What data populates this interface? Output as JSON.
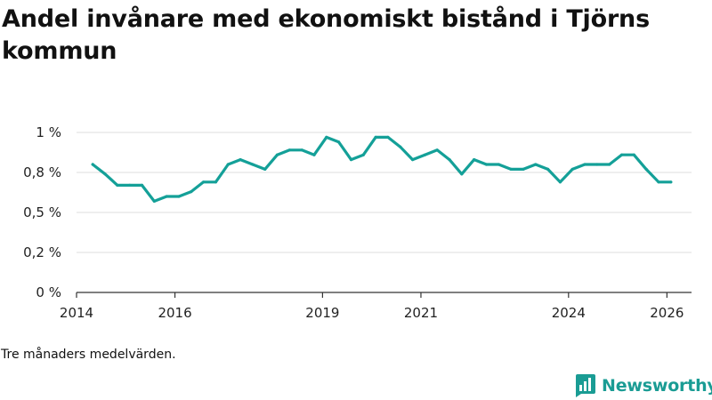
{
  "header": {
    "title": "Andel invånare med ekonomiskt bistånd i Tjörns kommun"
  },
  "footer": {
    "note": "Tre månaders medelvärden.",
    "brand": "Newsworthy"
  },
  "colors": {
    "line": "#14a098",
    "grid": "#dddddd",
    "axis": "#333333",
    "brand": "#1a9c94"
  },
  "chart_data": {
    "type": "line",
    "title": "Andel invånare med ekonomiskt bistånd i Tjörns kommun",
    "xlabel": "",
    "ylabel": "",
    "xlim": [
      2014.0,
      2026.5
    ],
    "ylim": [
      0,
      1.0
    ],
    "y_ticks": [
      {
        "value": 0,
        "label": "0 %"
      },
      {
        "value": 0.25,
        "label": "0,2 %"
      },
      {
        "value": 0.5,
        "label": "0,5 %"
      },
      {
        "value": 0.75,
        "label": "0,8 %"
      },
      {
        "value": 1.0,
        "label": "1 %"
      }
    ],
    "x_ticks": [
      {
        "value": 2014,
        "label": "2014"
      },
      {
        "value": 2016,
        "label": "2016"
      },
      {
        "value": 2019,
        "label": "2019"
      },
      {
        "value": 2021,
        "label": "2021"
      },
      {
        "value": 2024,
        "label": "2024"
      },
      {
        "value": 2026,
        "label": "2026"
      }
    ],
    "series": [
      {
        "name": "Andel invånare med ekonomiskt bistånd",
        "x": [
          2014.33,
          2014.58,
          2014.83,
          2015.08,
          2015.33,
          2015.58,
          2015.83,
          2016.08,
          2016.33,
          2016.58,
          2016.83,
          2017.08,
          2017.33,
          2017.58,
          2017.83,
          2018.08,
          2018.33,
          2018.58,
          2018.83,
          2019.08,
          2019.33,
          2019.58,
          2019.83,
          2020.08,
          2020.33,
          2020.58,
          2020.83,
          2021.08,
          2021.33,
          2021.58,
          2021.83,
          2022.08,
          2022.33,
          2022.58,
          2022.83,
          2023.08,
          2023.33,
          2023.58,
          2023.83,
          2024.08,
          2024.33,
          2024.58,
          2024.83,
          2025.08,
          2025.33,
          2025.58,
          2025.83,
          2026.08
        ],
        "y": [
          0.8,
          0.74,
          0.67,
          0.67,
          0.67,
          0.57,
          0.6,
          0.6,
          0.63,
          0.69,
          0.69,
          0.8,
          0.83,
          0.8,
          0.77,
          0.86,
          0.89,
          0.89,
          0.86,
          0.97,
          0.94,
          0.83,
          0.86,
          0.97,
          0.97,
          0.91,
          0.83,
          0.86,
          0.89,
          0.83,
          0.74,
          0.83,
          0.8,
          0.8,
          0.77,
          0.77,
          0.8,
          0.77,
          0.69,
          0.77,
          0.8,
          0.8,
          0.8,
          0.86,
          0.86,
          0.77,
          0.69,
          0.69
        ]
      }
    ]
  }
}
